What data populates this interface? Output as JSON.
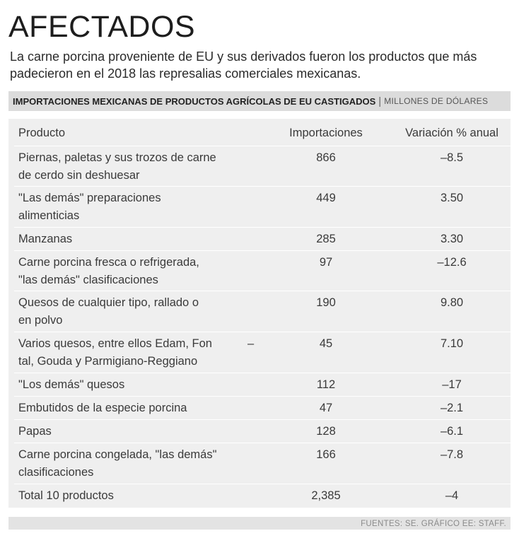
{
  "title": "AFECTADOS",
  "subtitle": "La carne porcina proveniente de EU y sus derivados fueron los productos que más padecieron en el 2018 las represalias comerciales mexicanas.",
  "table": {
    "caption": "IMPORTACIONES MEXICANAS DE PRODUCTOS AGRÍCOLAS DE EU CASTIGADOS",
    "separator": "|",
    "unit": "MILLONES DE DÓLARES",
    "headers": {
      "product": "Producto",
      "imports": "Importaciones",
      "variation": "Variación % anual"
    },
    "rows": [
      {
        "line1": "Piernas, paletas y sus trozos de carne",
        "line2": "de cerdo sin deshuesar",
        "imports": "866",
        "variation": "–8.5"
      },
      {
        "line1": "\"Las demás\" preparaciones",
        "line2": "alimenticias",
        "imports": "449",
        "variation": "3.50"
      },
      {
        "line1": "Manzanas",
        "line2": "",
        "imports": "285",
        "variation": "3.30"
      },
      {
        "line1": "Carne porcina fresca o refrigerada,",
        "line2": "\"las demás\" clasificaciones",
        "imports": "97",
        "variation": "–12.6"
      },
      {
        "line1": "Quesos de cualquier tipo, rallado o",
        "line2": "en polvo",
        "imports": "190",
        "variation": "9.80"
      },
      {
        "line1": "Varios quesos, entre ellos Edam, Fon",
        "line2": "tal, Gouda y Parmigiano-Reggiano",
        "dash": "–",
        "imports": "45",
        "variation": "7.10"
      },
      {
        "line1": "\"Los demás\" quesos",
        "line2": "",
        "imports": "112",
        "variation": "–17"
      },
      {
        "line1": "Embutidos de la especie porcina",
        "line2": "",
        "imports": "47",
        "variation": "–2.1"
      },
      {
        "line1": "Papas",
        "line2": "",
        "imports": "128",
        "variation": "–6.1"
      },
      {
        "line1": "Carne porcina congelada, \"las demás\"",
        "line2": "clasificaciones",
        "imports": "166",
        "variation": "–7.8"
      },
      {
        "line1": "Total 10 productos",
        "line2": "",
        "imports": "2,385",
        "variation": "–4"
      }
    ]
  },
  "footer": "FUENTES: SE. GRÁFICO EE: STAFF."
}
